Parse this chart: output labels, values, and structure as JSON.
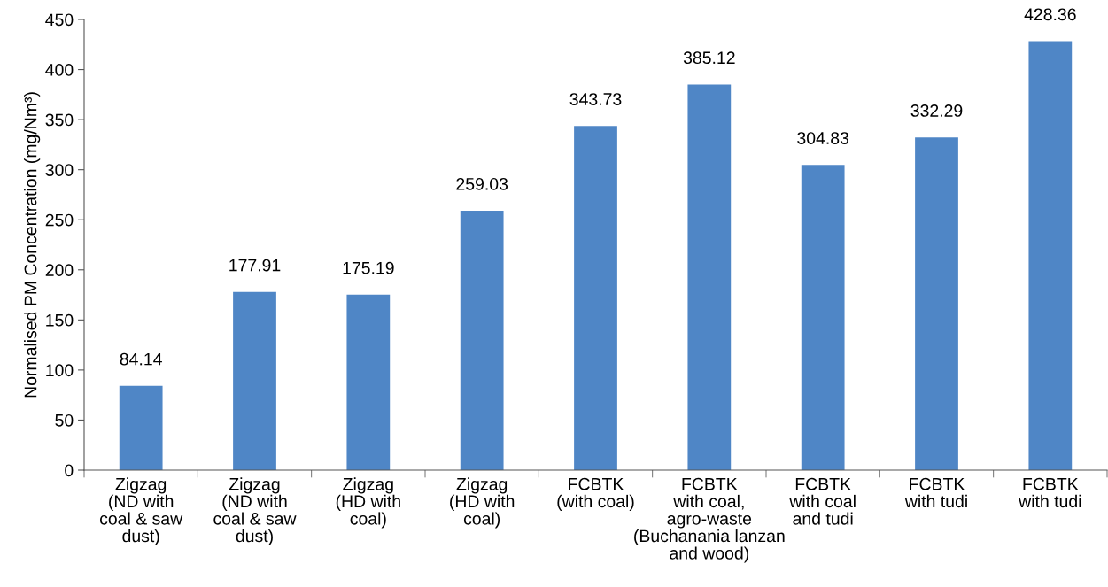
{
  "chart_data": {
    "type": "bar",
    "ylabel": "Normalised PM Concentration (mg/Nm³)",
    "categories": [
      "Zigzag\n(ND with\ncoal & saw\ndust)",
      "Zigzag\n(ND with\ncoal & saw\ndust)",
      "Zigzag\n(HD with\ncoal)",
      "Zigzag\n(HD with\ncoal)",
      "FCBTK\n(with coal)",
      "FCBTK\nwith coal,\nagro-waste\n(Buchanania lanzan\nand wood)",
      "FCBTK\nwith coal\nand tudi",
      "FCBTK\nwith tudi",
      "FCBTK\nwith tudi"
    ],
    "values": [
      84.14,
      177.91,
      175.19,
      259.03,
      343.73,
      385.12,
      304.83,
      332.29,
      428.36
    ],
    "color": "#4f86c6",
    "ylim": [
      0,
      450
    ],
    "yticks": [
      0,
      50,
      100,
      150,
      200,
      250,
      300,
      350,
      400,
      450
    ],
    "grid": false,
    "data_labels": true
  }
}
